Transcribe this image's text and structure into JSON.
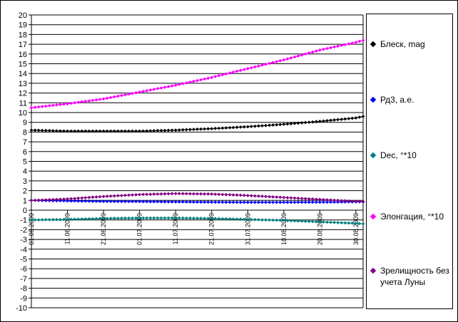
{
  "chart_data": {
    "type": "line",
    "x_ticks": [
      "01.06.2009",
      "11.06.2009",
      "21.06.2009",
      "01.07.2009",
      "11.07.2009",
      "21.07.2009",
      "31.07.2009",
      "10.08.2009",
      "20.08.2009",
      "30.08.2009"
    ],
    "x": [
      "01.06.2009",
      "11.06.2009",
      "21.06.2009",
      "01.07.2009",
      "11.07.2009",
      "21.07.2009",
      "31.07.2009",
      "10.08.2009",
      "20.08.2009",
      "30.08.2009",
      "01.09.2009"
    ],
    "ylim": [
      -10,
      20
    ],
    "y_ticks": [
      20,
      19,
      18,
      17,
      16,
      15,
      14,
      13,
      12,
      11,
      10,
      9,
      8,
      7,
      6,
      5,
      4,
      3,
      2,
      1,
      0,
      -1,
      -2,
      -3,
      -4,
      -5,
      -6,
      -7,
      -8,
      -9,
      -10
    ],
    "grid": true,
    "legend_position": "right",
    "series": [
      {
        "name": "Блеск, mag",
        "color": "#000000",
        "values": [
          8.2,
          8.1,
          8.1,
          8.1,
          8.2,
          8.35,
          8.55,
          8.8,
          9.1,
          9.45,
          9.6
        ]
      },
      {
        "name": "Рд3, а.е.",
        "color": "#0000ff",
        "values": [
          1.0,
          0.95,
          0.9,
          0.88,
          0.85,
          0.82,
          0.8,
          0.8,
          0.82,
          0.85,
          0.85
        ]
      },
      {
        "name": "Dec, °*10",
        "color": "#008080",
        "values": [
          -1.0,
          -0.95,
          -0.85,
          -0.8,
          -0.8,
          -0.85,
          -0.95,
          -1.05,
          -1.2,
          -1.35,
          -1.4
        ]
      },
      {
        "name": "Элонгация, °*10",
        "color": "#ff00ff",
        "values": [
          10.5,
          10.9,
          11.4,
          12.1,
          12.8,
          13.6,
          14.5,
          15.4,
          16.4,
          17.2,
          17.4
        ]
      },
      {
        "name": "Зрелищность без учета Луны",
        "color": "#800080",
        "values": [
          1.0,
          1.15,
          1.4,
          1.6,
          1.7,
          1.65,
          1.5,
          1.3,
          1.1,
          0.9,
          0.9
        ]
      }
    ]
  }
}
